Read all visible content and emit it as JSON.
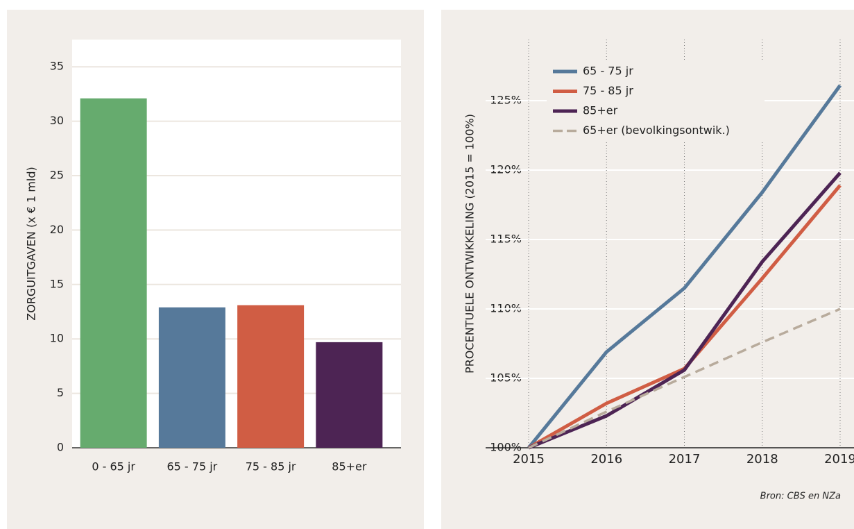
{
  "chart_data": [
    {
      "type": "bar",
      "ylabel": "ZORGUITGAVEN (x € 1 mld)",
      "categories": [
        "0 - 65 jr",
        "65 - 75 jr",
        "75 - 85 jr",
        "85+er"
      ],
      "values": [
        32.1,
        12.9,
        13.1,
        9.7
      ],
      "colors": [
        "#66ab6e",
        "#56799a",
        "#d05d44",
        "#4d2454"
      ],
      "ylim": [
        0,
        37.5
      ],
      "yticks": [
        0,
        5,
        10,
        15,
        20,
        25,
        30,
        35
      ],
      "grid": true
    },
    {
      "type": "line",
      "ylabel": "PROCENTUELE ONTWIKKELING (2015 = 100%)",
      "x": [
        2015,
        2016,
        2017,
        2018,
        2019
      ],
      "series": [
        {
          "name": "65 - 75 jr",
          "color": "#56799a",
          "values": [
            100,
            106.9,
            111.5,
            118.4,
            126.1
          ]
        },
        {
          "name": "75 - 85 jr",
          "color": "#d05d44",
          "values": [
            100,
            103.2,
            105.7,
            112.2,
            118.9
          ]
        },
        {
          "name": "85+er",
          "color": "#4d2454",
          "values": [
            100,
            102.3,
            105.6,
            113.4,
            119.8
          ]
        },
        {
          "name": "65+er (bevolkingsontwik.)",
          "color": "#b8ab9c",
          "dashed": true,
          "values": [
            100,
            102.6,
            105.1,
            107.6,
            110.0
          ]
        }
      ],
      "xlim": [
        2015,
        2019
      ],
      "xticks": [
        2015,
        2016,
        2017,
        2018,
        2019
      ],
      "ylim": [
        100,
        129.4
      ],
      "yticks": [
        {
          "value": 100,
          "label": "100%"
        },
        {
          "value": 105,
          "label": "105%"
        },
        {
          "value": 110,
          "label": "110%"
        },
        {
          "value": 115,
          "label": "115%"
        },
        {
          "value": 120,
          "label": "120%"
        },
        {
          "value": 125,
          "label": "125%"
        }
      ],
      "grid": true,
      "legend": "upper left",
      "source": "Bron: CBS en NZa"
    }
  ]
}
